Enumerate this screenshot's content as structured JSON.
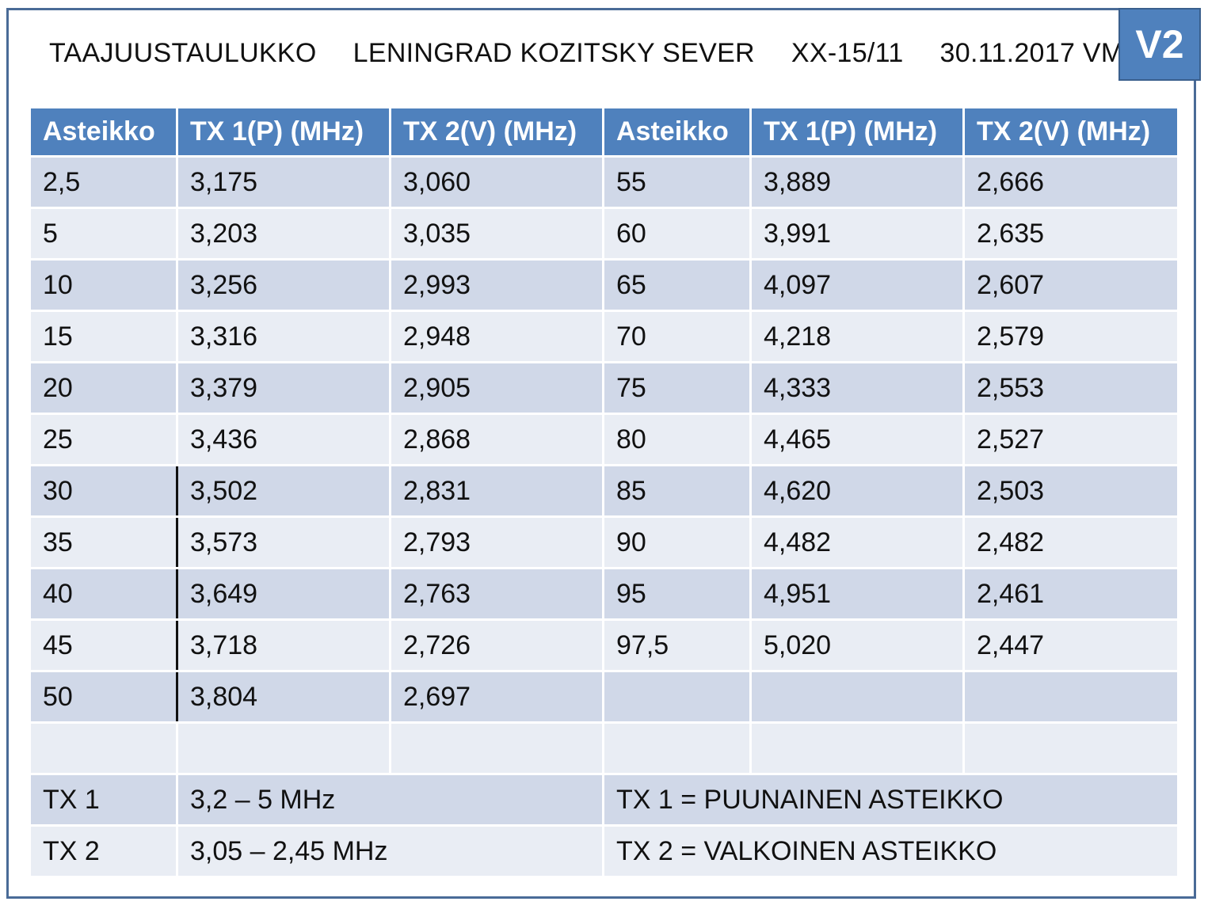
{
  "header": {
    "title": "TAAJUUSTAULUKKO",
    "subject": "LENINGRAD KOZITSKY SEVER",
    "code": "XX-15/11",
    "date": "30.11.2017 VM",
    "badge": "V2"
  },
  "table": {
    "columns": [
      "Asteikko",
      "TX 1(P) (MHz)",
      "TX 2(V) (MHz)",
      "Asteikko",
      "TX 1(P) (MHz)",
      "TX 2(V) (MHz)"
    ],
    "rows": [
      [
        "2,5",
        "3,175",
        "3,060",
        "55",
        "3,889",
        "2,666"
      ],
      [
        "5",
        "3,203",
        "3,035",
        "60",
        "3,991",
        "2,635"
      ],
      [
        "10",
        "3,256",
        "2,993",
        "65",
        "4,097",
        "2,607"
      ],
      [
        "15",
        "3,316",
        "2,948",
        "70",
        "4,218",
        "2,579"
      ],
      [
        "20",
        "3,379",
        "2,905",
        "75",
        "4,333",
        "2,553"
      ],
      [
        "25",
        "3,436",
        "2,868",
        "80",
        "4,465",
        "2,527"
      ],
      [
        "30",
        "3,502",
        "2,831",
        "85",
        "4,620",
        "2,503"
      ],
      [
        "35",
        "3,573",
        "2,793",
        "90",
        "4,482",
        "2,482"
      ],
      [
        "40",
        "3,649",
        "2,763",
        "95",
        "4,951",
        "2,461"
      ],
      [
        "45",
        "3,718",
        "2,726",
        "97,5",
        "5,020",
        "2,447"
      ],
      [
        "50",
        "3,804",
        "2,697",
        "",
        "",
        ""
      ],
      [
        "",
        "",
        "",
        "",
        "",
        ""
      ]
    ],
    "footer": [
      {
        "label": "TX 1",
        "range": "3,2 – 5 MHz",
        "note": "TX 1 = PUUNAINEN ASTEIKKO"
      },
      {
        "label": "TX 2",
        "range": "3,05 – 2,45 MHz",
        "note": "TX 2 = VALKOINEN ASTEIKKO"
      }
    ]
  }
}
